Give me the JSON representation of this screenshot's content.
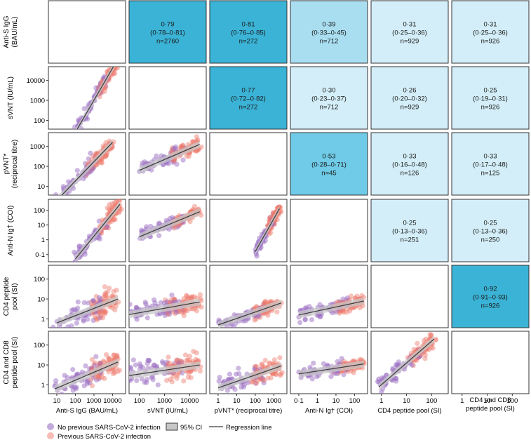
{
  "chart_data": {
    "type": "scatter",
    "title": "",
    "variables": [
      {
        "label": "Anti-S IgG\n(BAU/mL)",
        "xlabel": "Anti-S IgG (BAU/mL)",
        "ticks": [
          "10",
          "100",
          "1000",
          "10000"
        ],
        "ticks_logvalue": [
          1,
          2,
          3,
          4
        ]
      },
      {
        "label": "sVNT (IU/mL)",
        "xlabel": "sVNT (IU/mL)",
        "ticks": [
          "100",
          "1000",
          "10000"
        ],
        "ticks_logvalue": [
          2,
          3,
          4
        ]
      },
      {
        "label": "pVNT*\n(reciprocal titre)",
        "xlabel": "pVNT* (reciprocal titre)",
        "ticks": [
          "1",
          "10",
          "100",
          "1000"
        ],
        "ticks_logvalue": [
          0,
          1,
          2,
          3
        ]
      },
      {
        "label": "Anti-N Ig† (COI)",
        "xlabel": "Anti-N Ig† (COI)",
        "ticks": [
          "0·1",
          "1",
          "10",
          "100"
        ],
        "ticks_logvalue": [
          -1,
          0,
          1,
          2
        ]
      },
      {
        "label": "CD4 peptide\npool (SI)",
        "xlabel": "CD4 peptide pool (SI)",
        "ticks": [
          "1",
          "10",
          "100"
        ],
        "ticks_logvalue": [
          0,
          1,
          2
        ]
      },
      {
        "label": "CD4 and CD8\npeptide pool (SI)",
        "xlabel": "CD4 and CD8\npeptide pool (SI)",
        "ticks": [
          "1",
          "10",
          "100"
        ],
        "ticks_logvalue": [
          0,
          1,
          2
        ]
      }
    ],
    "y_ticks": [
      {
        "ticks": [],
        "ticks_logvalue": []
      },
      {
        "ticks": [
          "100",
          "1000",
          "10000"
        ],
        "ticks_logvalue": [
          2,
          3,
          4
        ]
      },
      {
        "ticks": [
          "10",
          "100",
          "1000"
        ],
        "ticks_logvalue": [
          1,
          2,
          3
        ]
      },
      {
        "ticks": [
          "0·1",
          "1",
          "10",
          "100"
        ],
        "ticks_logvalue": [
          -1,
          0,
          1,
          2
        ]
      },
      {
        "ticks": [
          "1",
          "10",
          "100"
        ],
        "ticks_logvalue": [
          0,
          1,
          2
        ]
      },
      {
        "ticks": [
          "1",
          "10",
          "100"
        ],
        "ticks_logvalue": [
          0,
          1,
          2
        ]
      }
    ],
    "correlations": [
      {
        "row": 0,
        "col": 1,
        "r": "0·79",
        "ci": "(0·78–0·81)",
        "n": "n=2760"
      },
      {
        "row": 0,
        "col": 2,
        "r": "0·81",
        "ci": "(0·76–0·85)",
        "n": "n=272"
      },
      {
        "row": 0,
        "col": 3,
        "r": "0·39",
        "ci": "(0·33–0·45)",
        "n": "n=712"
      },
      {
        "row": 0,
        "col": 4,
        "r": "0·31",
        "ci": "(0·25–0·36)",
        "n": "n=929"
      },
      {
        "row": 0,
        "col": 5,
        "r": "0·31",
        "ci": "(0·25–0·36)",
        "n": "n=926"
      },
      {
        "row": 1,
        "col": 2,
        "r": "0·77",
        "ci": "(0·72–0·82)",
        "n": "n=272"
      },
      {
        "row": 1,
        "col": 3,
        "r": "0·30",
        "ci": "(0·23–0·37)",
        "n": "n=712"
      },
      {
        "row": 1,
        "col": 4,
        "r": "0·26",
        "ci": "(0·20–0·32)",
        "n": "n=929"
      },
      {
        "row": 1,
        "col": 5,
        "r": "0·25",
        "ci": "(0·19–0·31)",
        "n": "n=926"
      },
      {
        "row": 2,
        "col": 3,
        "r": "0·53",
        "ci": "(0·28–0·71)",
        "n": "n=45"
      },
      {
        "row": 2,
        "col": 4,
        "r": "0·33",
        "ci": "(0·16–0·48)",
        "n": "n=126"
      },
      {
        "row": 2,
        "col": 5,
        "r": "0·33",
        "ci": "(0·17–0·48)",
        "n": "n=125"
      },
      {
        "row": 3,
        "col": 4,
        "r": "0·25",
        "ci": "(0·13–0·36)",
        "n": "n=251"
      },
      {
        "row": 3,
        "col": 5,
        "r": "0·25",
        "ci": "(0·13–0·36)",
        "n": "n=250"
      },
      {
        "row": 4,
        "col": 5,
        "r": "0·92",
        "ci": "(0·91–0·93)",
        "n": "n=926"
      }
    ],
    "regression_lines": [
      {
        "row": 1,
        "col": 0,
        "x": [
          2.0,
          4.3
        ],
        "y": [
          1.4,
          5.1
        ]
      },
      {
        "row": 2,
        "col": 0,
        "x": [
          0.9,
          4.0
        ],
        "y": [
          0.2,
          3.2
        ]
      },
      {
        "row": 2,
        "col": 1,
        "x": [
          2.0,
          4.4
        ],
        "y": [
          1.8,
          3.1
        ]
      },
      {
        "row": 3,
        "col": 0,
        "x": [
          2.0,
          4.4
        ],
        "y": [
          -1.3,
          2.4
        ]
      },
      {
        "row": 3,
        "col": 1,
        "x": [
          2.0,
          4.4
        ],
        "y": [
          0.2,
          1.9
        ]
      },
      {
        "row": 3,
        "col": 2,
        "x": [
          2.0,
          3.3
        ],
        "y": [
          -0.8,
          2.1
        ]
      },
      {
        "row": 4,
        "col": 0,
        "x": [
          1.0,
          4.3
        ],
        "y": [
          -0.2,
          1.0
        ]
      },
      {
        "row": 4,
        "col": 1,
        "x": [
          1.5,
          4.4
        ],
        "y": [
          0.2,
          0.85
        ]
      },
      {
        "row": 4,
        "col": 2,
        "x": [
          0.0,
          3.4
        ],
        "y": [
          -0.3,
          0.8
        ]
      },
      {
        "row": 4,
        "col": 3,
        "x": [
          -1.0,
          2.5
        ],
        "y": [
          0.2,
          0.9
        ]
      },
      {
        "row": 5,
        "col": 0,
        "x": [
          0.9,
          4.3
        ],
        "y": [
          -0.2,
          1.15
        ]
      },
      {
        "row": 5,
        "col": 1,
        "x": [
          1.5,
          4.4
        ],
        "y": [
          0.45,
          1.0
        ]
      },
      {
        "row": 5,
        "col": 2,
        "x": [
          0.0,
          3.4
        ],
        "y": [
          -0.15,
          0.95
        ]
      },
      {
        "row": 5,
        "col": 3,
        "x": [
          -1.0,
          2.5
        ],
        "y": [
          0.55,
          1.05
        ]
      },
      {
        "row": 5,
        "col": 4,
        "x": [
          -0.1,
          2.1
        ],
        "y": [
          -0.1,
          2.3
        ]
      }
    ],
    "series": [
      {
        "name": "No previous SARS-CoV-2 infection",
        "color": "#9b6fc4"
      },
      {
        "name": "Previous SARS-CoV-2 infection",
        "color": "#ee7a6c"
      }
    ],
    "legend": {
      "no_prev": "No previous SARS-CoV-2 infection",
      "prev": "Previous SARS-CoV-2 infection",
      "ci": "95% CI",
      "line": "Regression line",
      "position": "bottom-left"
    },
    "colors": {
      "corr_strong": "#3bb3d6",
      "corr_mid": "#6fcbe7",
      "corr_low": "#a9def1",
      "corr_faint": "#d3eef8",
      "ci_band": "#c8c8c8",
      "line": "#3a3a3a"
    }
  }
}
